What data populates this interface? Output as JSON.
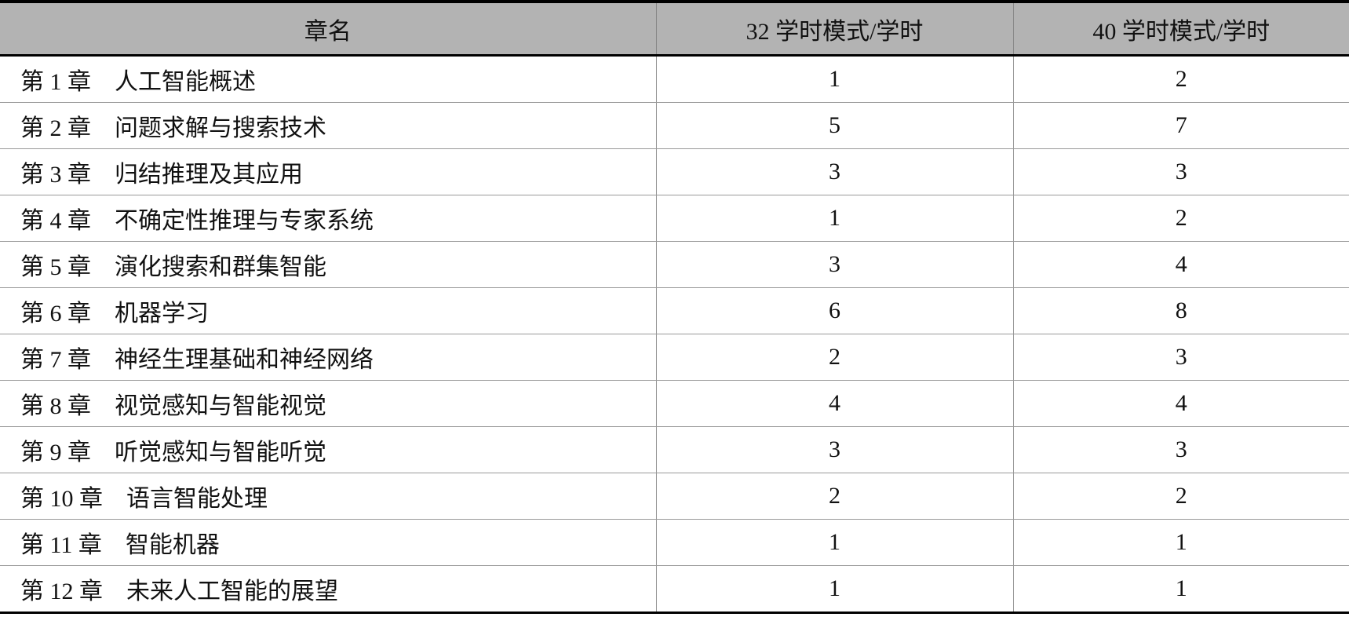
{
  "table": {
    "headers": [
      "章名",
      "32 学时模式/学时",
      "40 学时模式/学时"
    ],
    "rows": [
      {
        "chapter": "第 1 章",
        "title": "人工智能概述",
        "h32": "1",
        "h40": "2"
      },
      {
        "chapter": "第 2 章",
        "title": "问题求解与搜索技术",
        "h32": "5",
        "h40": "7"
      },
      {
        "chapter": "第 3 章",
        "title": "归结推理及其应用",
        "h32": "3",
        "h40": "3"
      },
      {
        "chapter": "第 4 章",
        "title": "不确定性推理与专家系统",
        "h32": "1",
        "h40": "2"
      },
      {
        "chapter": "第 5 章",
        "title": "演化搜索和群集智能",
        "h32": "3",
        "h40": "4"
      },
      {
        "chapter": "第 6 章",
        "title": "机器学习",
        "h32": "6",
        "h40": "8"
      },
      {
        "chapter": "第 7 章",
        "title": "神经生理基础和神经网络",
        "h32": "2",
        "h40": "3"
      },
      {
        "chapter": "第 8 章",
        "title": "视觉感知与智能视觉",
        "h32": "4",
        "h40": "4"
      },
      {
        "chapter": "第 9 章",
        "title": "听觉感知与智能听觉",
        "h32": "3",
        "h40": "3"
      },
      {
        "chapter": "第 10 章",
        "title": "语言智能处理",
        "h32": "2",
        "h40": "2"
      },
      {
        "chapter": "第 11 章",
        "title": "智能机器",
        "h32": "1",
        "h40": "1"
      },
      {
        "chapter": "第 12 章",
        "title": "未来人工智能的展望",
        "h32": "1",
        "h40": "1"
      }
    ]
  },
  "colors": {
    "header_bg": "#b3b3b3",
    "rule": "#000000"
  }
}
